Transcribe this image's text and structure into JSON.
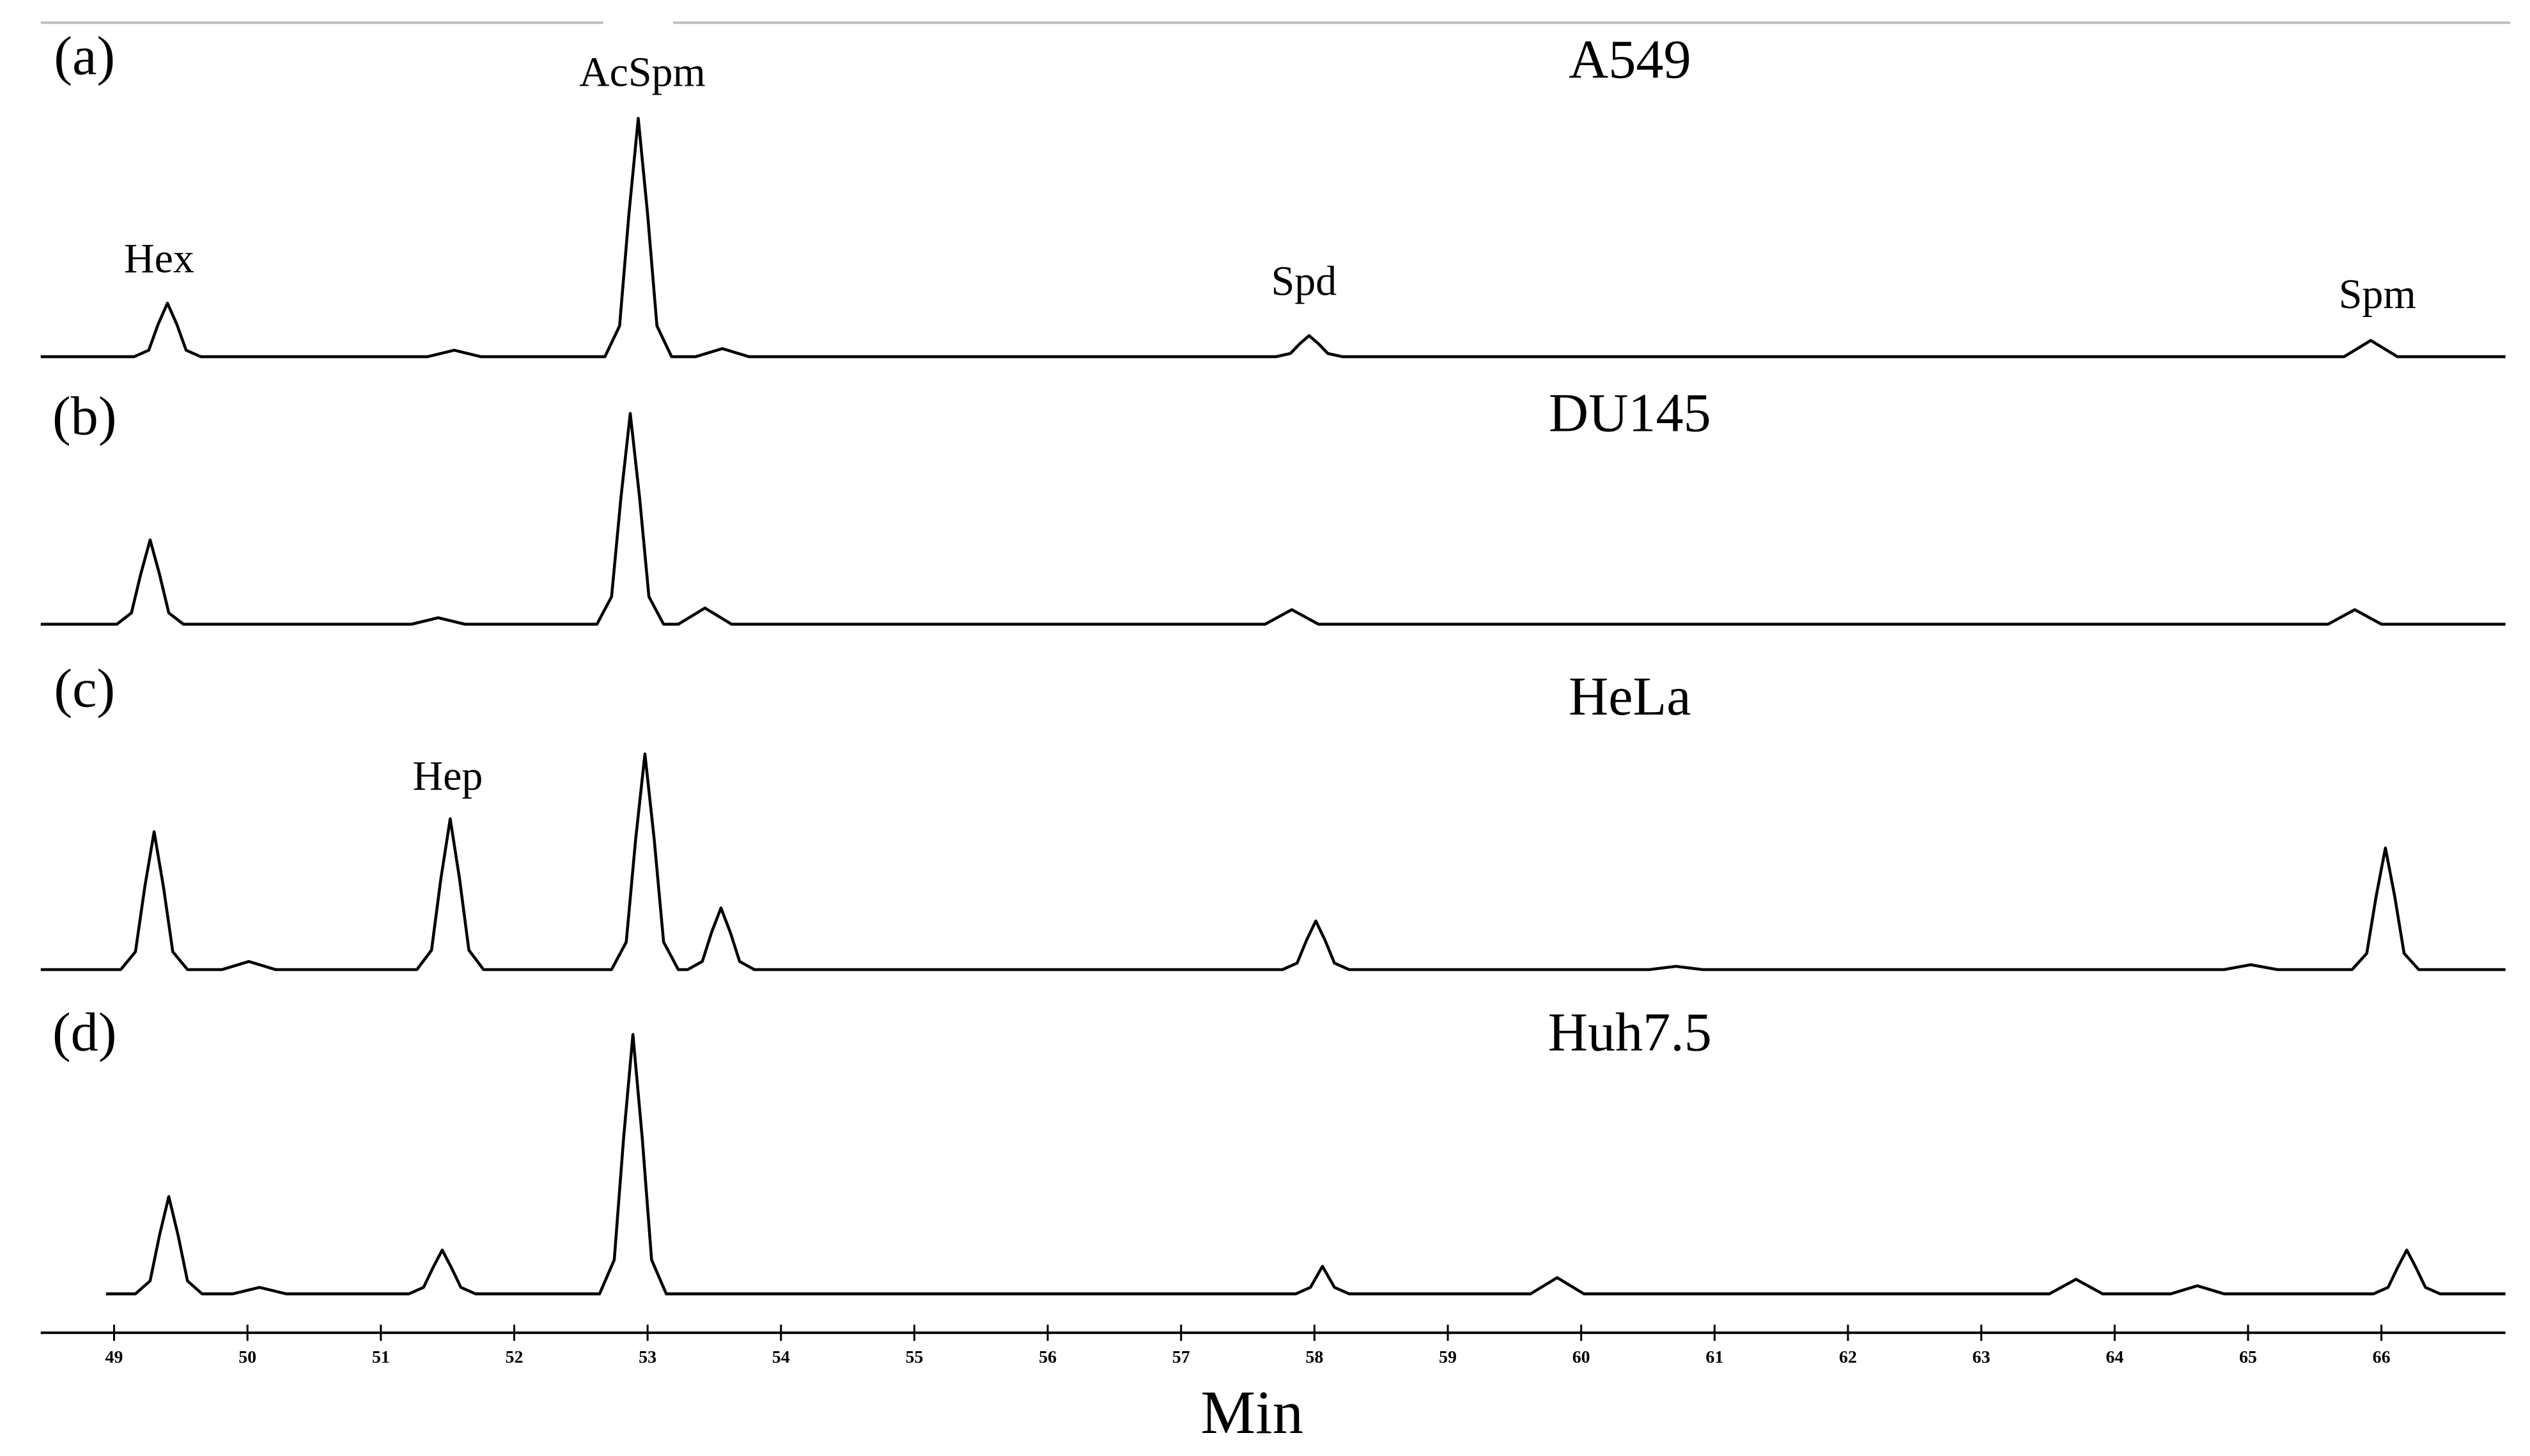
{
  "chart_data": {
    "type": "line",
    "xlabel": "Min",
    "color": "#000000",
    "xlim": [
      48.45,
      66.93
    ],
    "ylim": [
      0,
      170
    ],
    "xticks": [
      49,
      50,
      51,
      52,
      53,
      54,
      55,
      56,
      57,
      58,
      59,
      60,
      61,
      62,
      63,
      64,
      65,
      66
    ],
    "series": [
      {
        "name": "A549",
        "label": "(a)",
        "annotations": [
          "Hex",
          "AcSpm",
          "Spd",
          "Spm"
        ],
        "x": [
          48.45,
          49.15,
          49.26,
          49.33,
          49.4,
          49.47,
          49.54,
          49.65,
          51.35,
          51.55,
          51.75,
          52.68,
          52.79,
          52.86,
          52.93,
          53.0,
          53.07,
          53.18,
          53.36,
          53.56,
          53.76,
          57.71,
          57.82,
          57.89,
          57.96,
          58.03,
          58.1,
          58.21,
          65.72,
          65.92,
          66.12,
          66.93
        ],
        "values": [
          0,
          0,
          4,
          20,
          33,
          20,
          4,
          0,
          0,
          4,
          0,
          0,
          19,
          88,
          147,
          88,
          19,
          0,
          0,
          5,
          0,
          0,
          2,
          8,
          13,
          8,
          2,
          0,
          0,
          10,
          0,
          0
        ]
      },
      {
        "name": "DU145",
        "label": "(b)",
        "annotations": [],
        "x": [
          48.45,
          49.02,
          49.13,
          49.2,
          49.27,
          49.34,
          49.41,
          49.52,
          51.23,
          51.43,
          51.63,
          52.62,
          52.73,
          52.8,
          52.87,
          52.94,
          53.01,
          53.12,
          53.23,
          53.43,
          53.63,
          57.63,
          57.83,
          58.03,
          65.6,
          65.8,
          66.0,
          66.93
        ],
        "values": [
          0,
          0,
          7,
          31,
          52,
          31,
          7,
          0,
          0,
          4,
          0,
          0,
          17,
          78,
          130,
          78,
          17,
          0,
          0,
          10,
          0,
          0,
          9,
          0,
          0,
          9,
          0,
          0
        ]
      },
      {
        "name": "HeLa",
        "label": "(c)",
        "annotations": [
          "Hep"
        ],
        "x": [
          48.45,
          49.05,
          49.16,
          49.23,
          49.3,
          49.37,
          49.44,
          49.55,
          49.81,
          50.01,
          50.21,
          51.27,
          51.38,
          51.45,
          51.52,
          51.59,
          51.66,
          51.77,
          52.73,
          52.84,
          52.91,
          52.98,
          53.05,
          53.12,
          53.23,
          53.3,
          53.41,
          53.48,
          53.55,
          53.62,
          53.69,
          53.8,
          57.76,
          57.87,
          57.94,
          58.01,
          58.08,
          58.15,
          58.26,
          60.51,
          60.71,
          60.91,
          64.82,
          65.02,
          65.22,
          65.78,
          65.89,
          65.96,
          66.03,
          66.1,
          66.17,
          66.28,
          66.93
        ],
        "values": [
          0,
          0,
          11,
          51,
          85,
          51,
          11,
          0,
          0,
          5,
          0,
          0,
          12,
          56,
          93,
          56,
          12,
          0,
          0,
          17,
          80,
          133,
          80,
          17,
          0,
          0,
          5,
          23,
          38,
          23,
          5,
          0,
          0,
          4,
          18,
          30,
          18,
          4,
          0,
          0,
          2,
          0,
          0,
          3,
          0,
          0,
          10,
          45,
          75,
          45,
          10,
          0,
          0
        ]
      },
      {
        "name": "Huh7.5",
        "label": "(d)",
        "annotations": [],
        "x": [
          48.94,
          49.16,
          49.27,
          49.34,
          49.41,
          49.48,
          49.55,
          49.66,
          49.89,
          50.09,
          50.29,
          51.21,
          51.32,
          51.39,
          51.46,
          51.53,
          51.6,
          51.71,
          52.64,
          52.75,
          52.82,
          52.89,
          52.96,
          53.03,
          53.14,
          57.86,
          57.97,
          58.06,
          58.15,
          58.26,
          59.62,
          59.82,
          60.02,
          63.51,
          63.71,
          63.91,
          64.42,
          64.62,
          64.82,
          65.94,
          66.05,
          66.12,
          66.19,
          66.26,
          66.33,
          66.44,
          66.93
        ],
        "values": [
          0,
          0,
          8,
          36,
          60,
          36,
          8,
          0,
          0,
          4,
          0,
          0,
          4,
          16,
          27,
          16,
          4,
          0,
          0,
          21,
          96,
          160,
          96,
          21,
          0,
          0,
          4,
          17,
          4,
          0,
          0,
          10,
          0,
          0,
          9,
          0,
          0,
          5,
          0,
          0,
          4,
          16,
          27,
          16,
          4,
          0,
          0
        ]
      }
    ]
  }
}
